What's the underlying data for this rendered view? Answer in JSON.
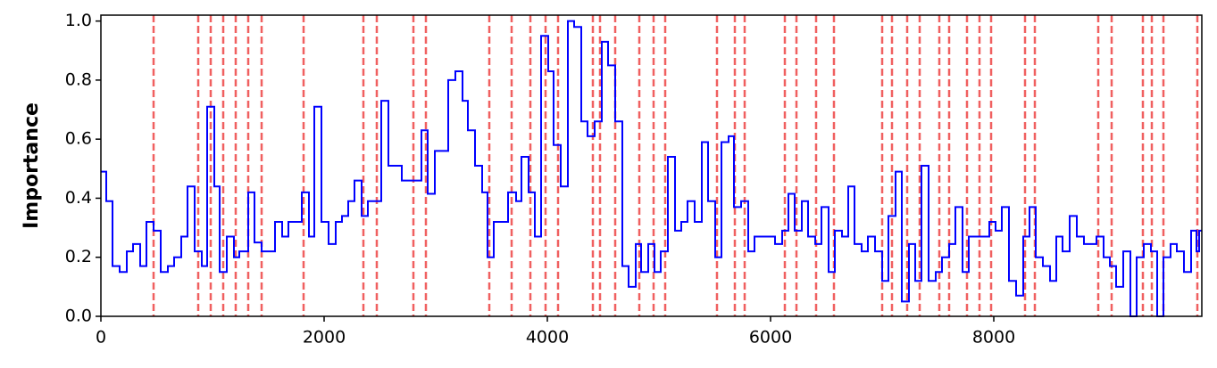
{
  "chart_data": {
    "type": "step",
    "ylabel": "Importance",
    "x": [
      0,
      48,
      104,
      168,
      232,
      288,
      352,
      408,
      472,
      536,
      600,
      656,
      720,
      776,
      840,
      904,
      952,
      1016,
      1064,
      1128,
      1192,
      1240,
      1320,
      1376,
      1440,
      1560,
      1624,
      1680,
      1800,
      1864,
      1912,
      1976,
      2040,
      2104,
      2160,
      2216,
      2272,
      2336,
      2392,
      2512,
      2576,
      2696,
      2872,
      2928,
      2992,
      3112,
      3176,
      3240,
      3288,
      3352,
      3416,
      3464,
      3520,
      3648,
      3720,
      3768,
      3832,
      3888,
      3944,
      4008,
      4056,
      4120,
      4184,
      4240,
      4304,
      4360,
      4424,
      4488,
      4544,
      4608,
      4672,
      4728,
      4792,
      4840,
      4904,
      4960,
      5016,
      5080,
      5144,
      5200,
      5256,
      5320,
      5384,
      5440,
      5504,
      5560,
      5624,
      5672,
      5736,
      5800,
      5856,
      6040,
      6104,
      6160,
      6216,
      6280,
      6336,
      6400,
      6456,
      6520,
      6576,
      6640,
      6696,
      6752,
      6816,
      6872,
      6936,
      7000,
      7056,
      7120,
      7176,
      7240,
      7296,
      7352,
      7416,
      7480,
      7536,
      7600,
      7656,
      7720,
      7776,
      7960,
      8016,
      8072,
      8136,
      8200,
      8264,
      8320,
      8376,
      8440,
      8504,
      8560,
      8616,
      8680,
      8744,
      8808,
      8920,
      8984,
      9040,
      9096,
      9160,
      9224,
      9280,
      9344,
      9408,
      9464,
      9520,
      9584,
      9640,
      9704,
      9768,
      9816,
      9840,
      9864
    ],
    "series": [
      {
        "color": "#0000ff",
        "values": [
          0.49,
          0.39,
          0.17,
          0.15,
          0.22,
          0.245,
          0.17,
          0.32,
          0.29,
          0.15,
          0.17,
          0.2,
          0.27,
          0.44,
          0.22,
          0.17,
          0.71,
          0.44,
          0.15,
          0.27,
          0.2,
          0.22,
          0.42,
          0.25,
          0.22,
          0.32,
          0.27,
          0.32,
          0.42,
          0.27,
          0.71,
          0.32,
          0.245,
          0.32,
          0.34,
          0.39,
          0.46,
          0.34,
          0.39,
          0.73,
          0.51,
          0.46,
          0.63,
          0.415,
          0.56,
          0.8,
          0.83,
          0.73,
          0.63,
          0.51,
          0.42,
          0.2,
          0.32,
          0.42,
          0.39,
          0.54,
          0.42,
          0.27,
          0.95,
          0.83,
          0.58,
          0.44,
          1.0,
          0.98,
          0.66,
          0.61,
          0.66,
          0.93,
          0.85,
          0.66,
          0.17,
          0.1,
          0.245,
          0.15,
          0.245,
          0.15,
          0.22,
          0.54,
          0.29,
          0.32,
          0.39,
          0.32,
          0.59,
          0.39,
          0.2,
          0.59,
          0.61,
          0.37,
          0.39,
          0.22,
          0.27,
          0.245,
          0.29,
          0.415,
          0.29,
          0.39,
          0.27,
          0.245,
          0.37,
          0.15,
          0.29,
          0.27,
          0.44,
          0.245,
          0.22,
          0.27,
          0.22,
          0.12,
          0.34,
          0.49,
          0.05,
          0.245,
          0.12,
          0.51,
          0.12,
          0.15,
          0.2,
          0.245,
          0.37,
          0.15,
          0.27,
          0.32,
          0.29,
          0.37,
          0.12,
          0.07,
          0.27,
          0.37,
          0.2,
          0.17,
          0.12,
          0.27,
          0.22,
          0.34,
          0.27,
          0.245,
          0.27,
          0.2,
          0.17,
          0.1,
          0.22,
          0.0,
          0.2,
          0.245,
          0.22,
          0.0,
          0.2,
          0.245,
          0.22,
          0.15,
          0.29,
          0.22,
          0.29,
          0.29
        ]
      }
    ],
    "vlines": [
      472,
      872,
      984,
      1096,
      1208,
      1320,
      1440,
      1816,
      2352,
      2472,
      2800,
      2912,
      3480,
      3680,
      3848,
      3984,
      4096,
      4408,
      4472,
      4608,
      4824,
      4952,
      5056,
      5520,
      5680,
      5768,
      6128,
      6232,
      6408,
      6568,
      7000,
      7088,
      7224,
      7336,
      7512,
      7600,
      7760,
      7872,
      7976,
      8280,
      8368,
      8936,
      9056,
      9336,
      9416,
      9520,
      9824
    ],
    "vline_color": "#f06060",
    "xlim": [
      0,
      9864
    ],
    "ylim": [
      0,
      1.02
    ],
    "xticks": [
      0,
      2000,
      4000,
      6000,
      8000
    ],
    "yticks": [
      {
        "value": 0,
        "label": "0.0"
      },
      0.2,
      0.4,
      0.6,
      0.8,
      {
        "value": 1,
        "label": "1.0"
      }
    ]
  }
}
